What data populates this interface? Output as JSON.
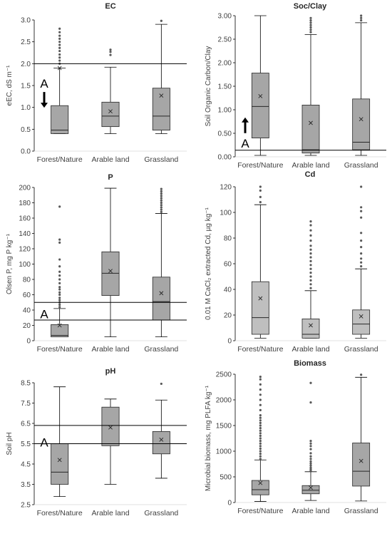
{
  "chart_data": [
    {
      "type": "box",
      "title": "EC",
      "ylabel": "eEC, dS m⁻¹",
      "ylim": [
        0,
        3.0
      ],
      "yticks": [
        0.0,
        0.5,
        1.0,
        1.5,
        2.0,
        2.5,
        3.0
      ],
      "ytick_labels": [
        "0.0",
        "0.5",
        "1.0",
        "1.5",
        "2.0",
        "2.5",
        "3.0"
      ],
      "categories": [
        "Forest/Nature",
        "Arable land",
        "Grassland"
      ],
      "boxes": [
        {
          "min": 0.4,
          "q1": 0.4,
          "median": 0.48,
          "q3": 1.04,
          "max": 1.9,
          "mean": 1.9,
          "outliers": [
            2.0,
            2.07,
            2.14,
            2.21,
            2.29,
            2.36,
            2.43,
            2.5,
            2.57,
            2.64,
            2.72,
            2.8
          ]
        },
        {
          "min": 0.4,
          "q1": 0.56,
          "median": 0.8,
          "q3": 1.12,
          "max": 1.92,
          "mean": 0.91,
          "outliers": [
            2.2,
            2.27,
            2.32
          ]
        },
        {
          "min": 0.4,
          "q1": 0.48,
          "median": 0.8,
          "q3": 1.44,
          "max": 2.9,
          "mean": 1.27,
          "outliers": [
            2.98
          ]
        }
      ],
      "reference_lines": [
        2.0
      ],
      "annotation": {
        "text": "A",
        "arrow": "down",
        "at": 1.45
      }
    },
    {
      "type": "box",
      "title": "Soc/Clay",
      "ylabel": "Soil Organic Carbon/Clay",
      "ylim": [
        0,
        3.0
      ],
      "yticks": [
        0.0,
        0.5,
        1.0,
        1.5,
        2.0,
        2.5,
        3.0
      ],
      "ytick_labels": [
        "0.00",
        "0.50",
        "1.00",
        "1.50",
        "2.00",
        "2.50",
        "3.00"
      ],
      "categories": [
        "Forest/Nature",
        "Arable land",
        "Grassland"
      ],
      "boxes": [
        {
          "min": 0.03,
          "q1": 0.4,
          "median": 1.07,
          "q3": 1.78,
          "max": 3.0,
          "mean": 1.29,
          "outliers": []
        },
        {
          "min": 0.03,
          "q1": 0.08,
          "median": 0.15,
          "q3": 1.1,
          "max": 2.6,
          "mean": 0.72,
          "outliers": [
            2.65,
            2.7,
            2.75,
            2.8,
            2.85,
            2.9,
            2.95
          ]
        },
        {
          "min": 0.03,
          "q1": 0.15,
          "median": 0.31,
          "q3": 1.23,
          "max": 2.85,
          "mean": 0.8,
          "outliers": [
            2.9,
            2.95,
            3.0
          ]
        }
      ],
      "reference_lines": [
        0.14
      ],
      "annotation": {
        "text": "A",
        "arrow": "up",
        "at": 0.2
      }
    },
    {
      "type": "box",
      "title": "P",
      "ylabel": "Olsen P, mg P kg⁻¹",
      "ylim": [
        0,
        200
      ],
      "yticks": [
        0,
        20,
        40,
        60,
        80,
        100,
        120,
        140,
        160,
        180,
        200
      ],
      "ytick_labels": [
        "0",
        "20",
        "40",
        "60",
        "80",
        "100",
        "120",
        "140",
        "160",
        "180",
        "200"
      ],
      "categories": [
        "Forest/Nature",
        "Arable land",
        "Grassland"
      ],
      "boxes": [
        {
          "min": 5,
          "q1": 5,
          "median": 7,
          "q3": 21,
          "max": 42,
          "mean": 20,
          "outliers": [
            44,
            47,
            50,
            53,
            56,
            60,
            63,
            67,
            70,
            75,
            80,
            85,
            90,
            97,
            106,
            128,
            132,
            175
          ]
        },
        {
          "min": 5,
          "q1": 59,
          "median": 88,
          "q3": 116,
          "max": 199,
          "mean": 91,
          "outliers": []
        },
        {
          "min": 5,
          "q1": 27,
          "median": 51,
          "q3": 83,
          "max": 166,
          "mean": 62,
          "outliers": [
            168,
            171,
            174,
            177,
            180,
            183,
            186,
            189,
            192,
            195,
            198
          ]
        }
      ],
      "reference_lines": [
        27,
        50
      ],
      "annotation": {
        "text": "A",
        "at": 36
      }
    },
    {
      "type": "box",
      "title": "Cd",
      "ylabel": "0.01 M CaCl₂ extracted Cd, µg kg⁻¹",
      "ylim": [
        0,
        120
      ],
      "yticks": [
        0,
        20,
        40,
        60,
        80,
        100,
        120
      ],
      "ytick_labels": [
        "0",
        "20",
        "40",
        "60",
        "80",
        "100",
        "120"
      ],
      "categories": [
        "Forest/Nature",
        "Arable land",
        "Grassland"
      ],
      "boxes": [
        {
          "min": 2,
          "q1": 5,
          "median": 18,
          "q3": 46,
          "max": 106,
          "mean": 33,
          "outliers": [
            108,
            112,
            117,
            120
          ]
        },
        {
          "min": 2,
          "q1": 2,
          "median": 5,
          "q3": 17,
          "max": 39,
          "mean": 12,
          "outliers": [
            41,
            44,
            47,
            50,
            53,
            56,
            59,
            62,
            65,
            68,
            71,
            74,
            78,
            82,
            86,
            90,
            93
          ]
        },
        {
          "min": 2,
          "q1": 5,
          "median": 13,
          "q3": 24,
          "max": 56,
          "mean": 19,
          "outliers": [
            58,
            61,
            64,
            68,
            73,
            78,
            84,
            96,
            101,
            104,
            120
          ]
        }
      ],
      "reference_lines": []
    },
    {
      "type": "box",
      "title": "pH",
      "ylabel": "Soil pH",
      "ylim": [
        2.5,
        8.5
      ],
      "yticks": [
        2.5,
        3.5,
        4.5,
        5.5,
        6.5,
        7.5,
        8.5
      ],
      "ytick_labels": [
        "2.5",
        "3.5",
        "4.5",
        "5.5",
        "6.5",
        "7.5",
        "8.5"
      ],
      "categories": [
        "Forest/Nature",
        "Arable land",
        "Grassland"
      ],
      "boxes": [
        {
          "min": 2.9,
          "q1": 3.5,
          "median": 4.1,
          "q3": 5.5,
          "max": 8.3,
          "mean": 4.7,
          "outliers": []
        },
        {
          "min": 3.5,
          "q1": 5.4,
          "median": 5.5,
          "q3": 7.3,
          "max": 7.7,
          "mean": 6.3,
          "outliers": []
        },
        {
          "min": 3.8,
          "q1": 5.0,
          "median": 5.5,
          "q3": 6.1,
          "max": 7.65,
          "mean": 5.7,
          "outliers": [
            8.45
          ]
        }
      ],
      "reference_lines": [
        5.5,
        6.4
      ],
      "annotation": {
        "text": "A",
        "at": 5.6
      }
    },
    {
      "type": "box",
      "title": "Biomass",
      "ylabel": "Microbial biomass, mg PLFA kg⁻¹",
      "ylim": [
        0,
        2500
      ],
      "yticks": [
        0,
        500,
        1000,
        1500,
        2000,
        2500
      ],
      "ytick_labels": [
        "0",
        "500",
        "1000",
        "1500",
        "2000",
        "2500"
      ],
      "categories": [
        "Forest/Nature",
        "Arable land",
        "Grassland"
      ],
      "boxes": [
        {
          "min": 20,
          "q1": 150,
          "median": 250,
          "q3": 430,
          "max": 830,
          "mean": 380,
          "outliers": [
            850,
            900,
            950,
            1000,
            1050,
            1100,
            1150,
            1200,
            1250,
            1300,
            1350,
            1400,
            1450,
            1500,
            1550,
            1600,
            1650,
            1700,
            1800,
            1900,
            2000,
            2100,
            2200,
            2300,
            2400,
            2450
          ]
        },
        {
          "min": 40,
          "q1": 170,
          "median": 240,
          "q3": 330,
          "max": 600,
          "mean": 290,
          "outliers": [
            620,
            650,
            680,
            720,
            760,
            800,
            850,
            900,
            960,
            1040,
            1100,
            1150,
            1200,
            1950,
            2330
          ]
        },
        {
          "min": 30,
          "q1": 320,
          "median": 610,
          "q3": 1160,
          "max": 2440,
          "mean": 810,
          "outliers": [
            2490
          ]
        }
      ],
      "reference_lines": []
    }
  ]
}
